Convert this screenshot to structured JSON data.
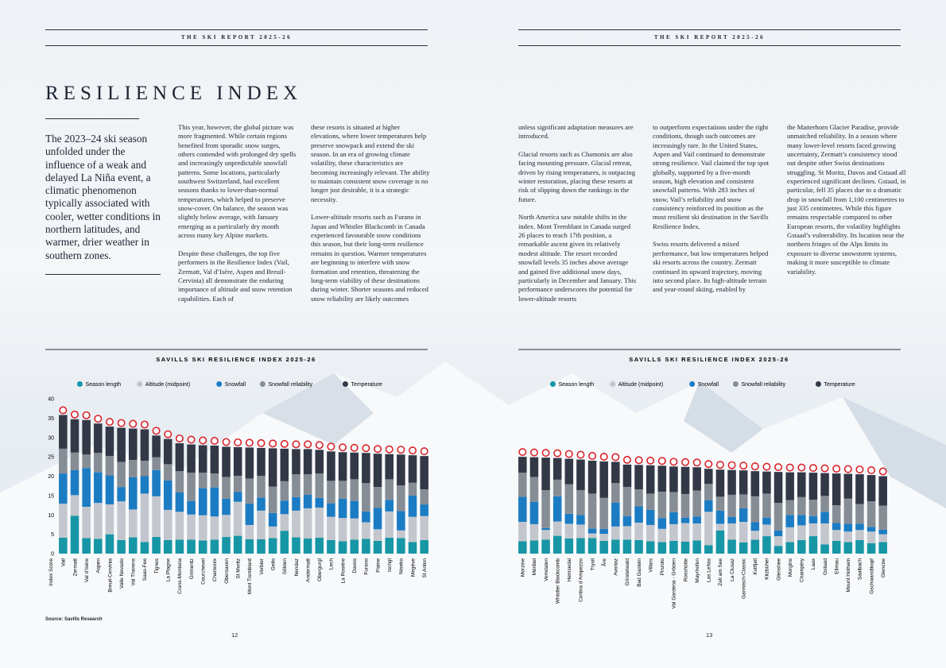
{
  "pages": [
    {
      "header": "THE SKI REPORT 2025-26",
      "page_number": "12"
    },
    {
      "header": "THE SKI REPORT 2025-26",
      "page_number": "13"
    }
  ],
  "title": "RESILIENCE INDEX",
  "intro": "The 2023–24 ski season unfolded under the influence of a weak and delayed La Niña event, a climatic phenomenon typically associated with cooler, wetter conditions in northern latitudes, and warmer, drier weather in southern zones.",
  "columns": [
    [
      "This year, however, the global picture was more fragmented. While certain regions benefited from sporadic snow surges, others contended with prolonged dry spells and increasingly unpredictable snowfall patterns. Some locations, particularly southwest Switzerland, had excellent seasons thanks to lower-than-normal temperatures, which helped to preserve snow-cover. On balance, the season was slightly below average, with January emerging as a particularly dry month across many key Alpine markets.",
      "Despite these challenges, the top five performers in the Resilience Index (Vail, Zermatt, Val d’Isère, Aspen and Breuil-Cervinia) all demonstrate the enduring importance of altitude and snow retention capabilities. Each of"
    ],
    [
      "these resorts is situated at higher elevations, where lower temperatures help preserve snowpack and extend the ski season. In an era of growing climate volatility, these characteristics are becoming increasingly relevant. The ability to maintain consistent snow coverage is no longer just desirable, it is a strategic necessity.",
      "Lower-altitude resorts such as Furano in Japan and Whistler Blackcomb in Canada experienced favourable snow conditions this season, but their long-term resilience remains in question. Warmer temperatures are beginning to interfere with snow formation and retention, threatening the long-term viability of these destinations during winter. Shorter seasons and reduced snow reliability are likely outcomes"
    ],
    [
      "unless significant adaptation measures are introduced.",
      "Glacial resorts such as Chamonix are also facing mounting pressure. Glacial retreat, driven by rising temperatures, is outpacing winter restoration, placing these resorts at risk of slipping down the rankings in the future.",
      "North America saw notable shifts in the index. Mont Tremblant in Canada surged 26 places to reach 17th position, a remarkable ascent given its relatively modest altitude. The resort recorded snowfall levels 35 inches above average and gained five additional snow days, particularly in December and January. This performance underscores the potential for lower-altitude resorts"
    ],
    [
      "to outperform expectations under the right conditions, though such outcomes are increasingly rare. In the United States, Aspen and Vail continued to demonstrate strong resilience. Vail claimed the top spot globally, supported by a five-month season, high elevation and consistent snowfall patterns. With 283 inches of snow, Vail’s reliability and snow consistency reinforced its position as the most resilient ski destination in the Savills Resilience Index.",
      "Swiss resorts delivered a mixed performance, but low temperatures helped ski resorts across the country. Zermatt continued its upward trajectory, moving into second place. Its high-altitude terrain and year-round skiing, enabled by"
    ],
    [
      "the Matterhorn Glacier Paradise, provide unmatched reliability. In a season where many lower-level resorts faced growing uncertainty, Zermatt’s consistency stood out despite other Swiss destinations struggling. St Moritz, Davos and Gstaad all experienced significant declines. Gstaad, in particular, fell 35 places due to a dramatic drop in snowfall from 1,100 centimetres to just 335 centimetres. While this figure remains respectable compared to other European resorts, the volatility highlights Gstaad’s vulnerability. Its location near the northern fringes of the Alps limits its exposure to diverse snowstorm systems, making it more susceptible to climate variability."
    ]
  ],
  "source": "Source: Savills Research",
  "chart_data": [
    {
      "type": "stacked-bar",
      "title": "SAVILLS SKI RESILIENCE INDEX 2025-26",
      "y_label": "Index Score",
      "categories": [
        "Vail",
        "Zermatt",
        "Val d’Isère",
        "Aspen",
        "Breuil-Cervinia",
        "Valle Nevado",
        "Val Thorens",
        "Saas-Fee",
        "Tignes",
        "La Plagne",
        "Crans-Montana",
        "Grimentz",
        "Courchevel",
        "Chamonix",
        "Obersaxen",
        "St Moritz",
        "Mont Tremblant",
        "Verbier",
        "Geilo",
        "Sölden",
        "Nendaz",
        "Andermatt",
        "Obergurgl",
        "Lech",
        "La Rosière",
        "Davos",
        "Furano",
        "Flaine",
        "Ischgl",
        "Niseko",
        "Megève",
        "St Anton"
      ],
      "ylim": [
        0,
        40
      ],
      "yticks": [
        0,
        5,
        10,
        15,
        20,
        25,
        30,
        35,
        40
      ],
      "series": [
        {
          "name": "Season length",
          "color": "#1796a6",
          "values": [
            4.1,
            9.8,
            4.0,
            3.8,
            5.0,
            3.5,
            4.2,
            3.0,
            4.3,
            3.5,
            3.6,
            3.6,
            3.4,
            3.6,
            4.3,
            4.6,
            3.7,
            3.7,
            4.0,
            5.9,
            4.2,
            3.9,
            4.1,
            3.5,
            3.2,
            3.6,
            3.8,
            3.3,
            4.1,
            4.0,
            3.0,
            3.5
          ]
        },
        {
          "name": "Altitude (midpoint)",
          "color": "#c3c7cd",
          "values": [
            8.8,
            5.3,
            8.1,
            9.3,
            7.7,
            10.0,
            7.2,
            12.5,
            10.5,
            7.8,
            7.2,
            6.5,
            6.5,
            6.0,
            5.7,
            8.8,
            3.7,
            7.4,
            3.0,
            4.3,
            6.9,
            7.8,
            7.8,
            6.0,
            6.0,
            5.5,
            4.3,
            3.0,
            6.8,
            2.0,
            6.5,
            6.2
          ]
        },
        {
          "name": "Snowfall",
          "color": "#1b7cc4",
          "values": [
            7.8,
            6.5,
            10.0,
            7.9,
            7.5,
            3.7,
            8.3,
            4.5,
            6.8,
            7.6,
            5.0,
            3.5,
            7.0,
            7.5,
            4.2,
            2.5,
            5.5,
            3.4,
            3.5,
            3.5,
            3.5,
            3.5,
            2.5,
            3.5,
            5.0,
            4.5,
            2.8,
            5.5,
            3.0,
            5.0,
            5.5,
            3.0
          ]
        },
        {
          "name": "Snowfall reliability",
          "color": "#878d94",
          "values": [
            6.4,
            4.5,
            3.5,
            5.0,
            5.0,
            6.5,
            4.5,
            4.0,
            3.3,
            4.2,
            5.5,
            7.3,
            4.0,
            3.6,
            5.6,
            4.2,
            6.5,
            5.6,
            6.8,
            5.0,
            5.9,
            5.3,
            6.3,
            5.8,
            4.6,
            5.6,
            7.3,
            5.4,
            5.3,
            6.6,
            3.3,
            3.9
          ]
        },
        {
          "name": "Temperature",
          "color": "#333847",
          "values": [
            8.7,
            8.6,
            8.9,
            7.6,
            7.6,
            8.8,
            8.1,
            8.1,
            5.6,
            6.5,
            7.2,
            7.3,
            7.1,
            7.2,
            7.8,
            7.4,
            8.0,
            7.2,
            9.9,
            8.4,
            6.5,
            6.5,
            6.1,
            7.6,
            7.4,
            6.9,
            7.8,
            8.6,
            6.5,
            8.0,
            7.1,
            8.6
          ]
        }
      ]
    },
    {
      "type": "stacked-bar",
      "title": "SAVILLS SKI RESILIENCE INDEX 2025-26",
      "categories": [
        "Morzine",
        "Méribel",
        "Vemdalen",
        "Whistler Blackcomb",
        "Hemsedal",
        "Cortina d’Ampezzo",
        "Trysil",
        "Åre",
        "Avoriaz",
        "Grindelwald",
        "Bad Gastein",
        "Villars",
        "Pinzolo",
        "Val Gardena - Gröden",
        "Rosshütte",
        "Mayrhofen",
        "Las Leñas",
        "Zell am See",
        "La Clusaz",
        "Garmisch-Classic",
        "Kvitfjell",
        "Kitzbühel",
        "Glenshee",
        "Morgins",
        "Champéry",
        "Laax",
        "Gstaad",
        "Ellmau",
        "Mount Hotham",
        "Saalbach",
        "Gschwandtkopf",
        "Glencoe"
      ],
      "ylim": [
        0,
        40
      ],
      "series": [
        {
          "name": "Season length",
          "color": "#1796a6",
          "values": [
            3.2,
            3.4,
            3.6,
            4.6,
            3.9,
            4.0,
            4.0,
            3.3,
            3.6,
            3.6,
            3.5,
            3.2,
            3.0,
            3.3,
            3.1,
            3.4,
            2.2,
            6.0,
            3.6,
            2.9,
            3.6,
            4.5,
            2.0,
            3.0,
            3.5,
            4.5,
            2.4,
            3.3,
            3.0,
            3.5,
            2.7,
            3.0
          ]
        },
        {
          "name": "Altitude (midpoint)",
          "color": "#c3c7cd",
          "values": [
            5.0,
            4.2,
            2.5,
            3.7,
            3.8,
            3.5,
            1.2,
            1.8,
            3.4,
            3.5,
            4.5,
            4.2,
            3.4,
            4.3,
            4.8,
            4.4,
            8.6,
            1.7,
            4.2,
            5.3,
            2.3,
            3.0,
            2.5,
            3.8,
            3.8,
            3.3,
            5.4,
            2.8,
            2.7,
            2.6,
            3.0,
            2.0
          ]
        },
        {
          "name": "Snowfall",
          "color": "#1b7cc4",
          "values": [
            6.5,
            5.8,
            0.5,
            6.5,
            2.6,
            2.5,
            1.3,
            1.3,
            6.2,
            2.6,
            4.2,
            3.9,
            2.8,
            3.1,
            1.4,
            1.8,
            3.0,
            3.4,
            1.7,
            3.5,
            2.2,
            1.8,
            1.5,
            3.2,
            2.7,
            1.9,
            3.0,
            1.8,
            2.0,
            1.6,
            1.2,
            1.2
          ]
        },
        {
          "name": "Snowfall reliability",
          "color": "#878d94",
          "values": [
            6.2,
            6.4,
            9.8,
            4.3,
            7.6,
            6.4,
            9.0,
            8.0,
            5.0,
            7.5,
            4.4,
            4.2,
            6.8,
            5.2,
            6.1,
            6.7,
            4.2,
            3.6,
            5.7,
            3.6,
            6.7,
            6.2,
            7.1,
            3.8,
            4.6,
            4.2,
            4.1,
            4.6,
            6.5,
            5.1,
            6.6,
            6.2
          ]
        },
        {
          "name": "Temperature",
          "color": "#333847",
          "values": [
            4.1,
            5.1,
            8.4,
            5.6,
            6.6,
            7.9,
            8.5,
            9.4,
            5.5,
            5.8,
            6.3,
            7.3,
            6.7,
            6.6,
            7.0,
            6.0,
            3.9,
            7.0,
            6.4,
            6.2,
            6.5,
            5.7,
            8.0,
            7.2,
            6.4,
            7.0,
            5.9,
            8.2,
            6.4,
            7.7,
            6.8,
            7.6
          ]
        }
      ]
    }
  ]
}
